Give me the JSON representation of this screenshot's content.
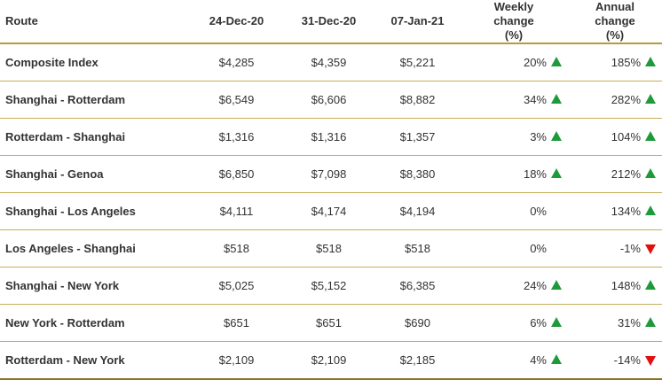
{
  "table": {
    "header": [
      "Route",
      "24-Dec-20",
      "31-Dec-20",
      "07-Jan-21",
      "Weekly change (%)",
      "Annual change (%)"
    ],
    "rows": [
      [
        "Composite Index",
        "$4,285",
        "$4,359",
        "$5,221",
        "20%",
        "185%"
      ],
      [
        "Shanghai - Rotterdam",
        "$6,549",
        "$6,606",
        "$8,882",
        "34%",
        "282%"
      ],
      [
        "Rotterdam - Shanghai",
        "$1,316",
        "$1,316",
        "$1,357",
        "3%",
        "104%"
      ],
      [
        "Shanghai - Genoa",
        "$6,850",
        "$7,098",
        "$8,380",
        "18%",
        "212%"
      ],
      [
        "Shanghai - Los Angeles",
        "$4,111",
        "$4,174",
        "$4,194",
        "0%",
        "134%"
      ],
      [
        "Los Angeles - Shanghai",
        "$518",
        "$518",
        "$518",
        "0%",
        "-1%"
      ],
      [
        "Shanghai - New York",
        "$5,025",
        "$5,152",
        "$6,385",
        "24%",
        "148%"
      ],
      [
        "New York - Rotterdam",
        "$651",
        "$651",
        "$690",
        "6%",
        "31%"
      ],
      [
        "Rotterdam - New York",
        "$2,109",
        "$2,109",
        "$2,185",
        "4%",
        "-14%"
      ]
    ]
  }
}
